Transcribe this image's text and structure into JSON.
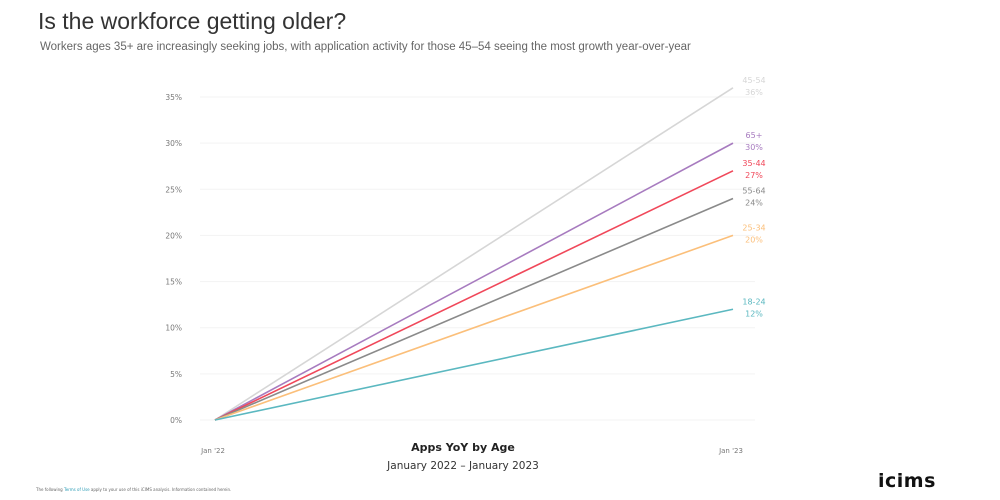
{
  "title": "Is the workforce getting older?",
  "subtitle": "Workers ages 35+ are increasingly seeking jobs, with application activity for those 45–54 seeing the most growth year-over-year",
  "footer": {
    "pre": "The following ",
    "link": "Terms of Use",
    "post": " apply to your use of this iCIMS analysis. Information contained herein."
  },
  "logo": "icims",
  "chart_data": {
    "type": "line",
    "x": [
      "Jan '22",
      "Jan '23"
    ],
    "xlabel": "Apps YoY by Age",
    "xsublabel": "January 2022 – January 2023",
    "ylim": [
      0,
      35
    ],
    "yticks": [
      "0%",
      "5%",
      "10%",
      "15%",
      "20%",
      "25%",
      "30%",
      "35%"
    ],
    "grid": true,
    "series": [
      {
        "name": "45-54",
        "label": "36%",
        "values": [
          0,
          36
        ],
        "color": "#d6d6d6"
      },
      {
        "name": "65+",
        "label": "30%",
        "values": [
          0,
          30
        ],
        "color": "#a77bbf"
      },
      {
        "name": "35-44",
        "label": "27%",
        "values": [
          0,
          27
        ],
        "color": "#f0485a"
      },
      {
        "name": "55-64",
        "label": "24%",
        "values": [
          0,
          24
        ],
        "color": "#8a8a8a"
      },
      {
        "name": "25-34",
        "label": "20%",
        "values": [
          0,
          20
        ],
        "color": "#fbbf7a"
      },
      {
        "name": "18-24",
        "label": "12%",
        "values": [
          0,
          12
        ],
        "color": "#5bb8c0"
      }
    ]
  }
}
